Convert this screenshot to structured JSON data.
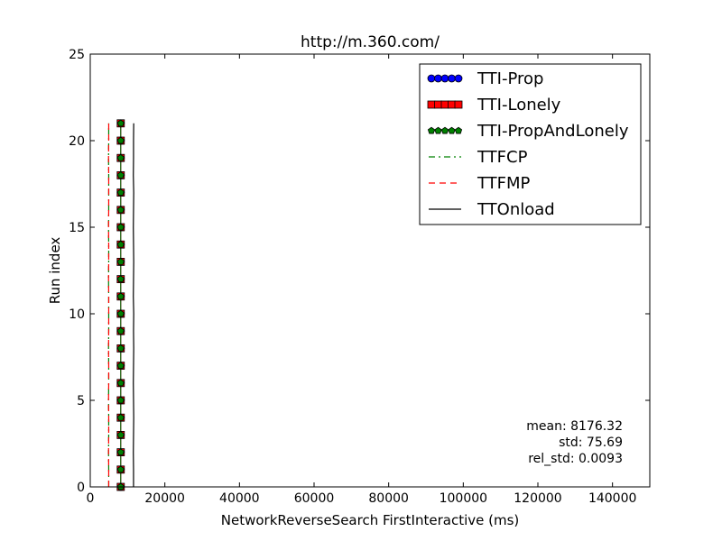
{
  "chart_data": {
    "type": "line",
    "title": "http://m.360.com/",
    "xlabel": "NetworkReverseSearch FirstInteractive (ms)",
    "ylabel": "Run index",
    "xlim": [
      0,
      150000
    ],
    "ylim": [
      0,
      25
    ],
    "xticks": [
      0,
      20000,
      40000,
      60000,
      80000,
      100000,
      120000,
      140000
    ],
    "xtick_labels": [
      "0",
      "20000",
      "40000",
      "60000",
      "80000",
      "100000",
      "120000",
      "140000"
    ],
    "yticks": [
      0,
      5,
      10,
      15,
      20,
      25
    ],
    "ytick_labels": [
      "0",
      "5",
      "10",
      "15",
      "20",
      "25"
    ],
    "grid": false,
    "legend_position": "top-right",
    "series": [
      {
        "name": "TTI-Prop",
        "color": "#0000ff",
        "style": "marker-circle",
        "x": [
          8176,
          8176,
          8176,
          8176,
          8176,
          8176,
          8176,
          8176,
          8176,
          8176,
          8176,
          8176,
          8176,
          8176,
          8176,
          8176,
          8176,
          8176,
          8176,
          8176,
          8176,
          8176
        ],
        "y": [
          0,
          1,
          2,
          3,
          4,
          5,
          6,
          7,
          8,
          9,
          10,
          11,
          12,
          13,
          14,
          15,
          16,
          17,
          18,
          19,
          20,
          21
        ]
      },
      {
        "name": "TTI-Lonely",
        "color": "#ff0000",
        "style": "marker-square",
        "x": [
          8176,
          8176,
          8176,
          8176,
          8176,
          8176,
          8176,
          8176,
          8176,
          8176,
          8176,
          8176,
          8176,
          8176,
          8176,
          8176,
          8176,
          8176,
          8176,
          8176,
          8176,
          8176
        ],
        "y": [
          0,
          1,
          2,
          3,
          4,
          5,
          6,
          7,
          8,
          9,
          10,
          11,
          12,
          13,
          14,
          15,
          16,
          17,
          18,
          19,
          20,
          21
        ]
      },
      {
        "name": "TTI-PropAndLonely",
        "color": "#008000",
        "style": "marker-pentagon",
        "x": [
          8176,
          8176,
          8176,
          8176,
          8176,
          8176,
          8176,
          8176,
          8176,
          8176,
          8176,
          8176,
          8176,
          8176,
          8176,
          8176,
          8176,
          8176,
          8176,
          8176,
          8176,
          8176
        ],
        "y": [
          0,
          1,
          2,
          3,
          4,
          5,
          6,
          7,
          8,
          9,
          10,
          11,
          12,
          13,
          14,
          15,
          16,
          17,
          18,
          19,
          20,
          21
        ]
      },
      {
        "name": "TTFCP",
        "color": "#008000",
        "style": "dash-dot",
        "x": [
          4950,
          4950,
          4900,
          4950,
          4950,
          4900,
          4950,
          4950,
          4900,
          4950,
          4950,
          4950,
          4900,
          4950,
          4950,
          4900,
          4950,
          4950,
          4950,
          4900,
          4950,
          4950
        ],
        "y": [
          0,
          1,
          2,
          3,
          4,
          5,
          6,
          7,
          8,
          9,
          10,
          11,
          12,
          13,
          14,
          15,
          16,
          17,
          18,
          19,
          20,
          21
        ]
      },
      {
        "name": "TTFMP",
        "color": "#ff0000",
        "style": "dashed",
        "x": [
          4950,
          4950,
          4900,
          4950,
          4950,
          4900,
          4950,
          4950,
          4900,
          4950,
          4950,
          4950,
          4900,
          4950,
          4950,
          4900,
          4950,
          4950,
          4950,
          4900,
          4950,
          4950
        ],
        "y": [
          0,
          1,
          2,
          3,
          4,
          5,
          6,
          7,
          8,
          9,
          10,
          11,
          12,
          13,
          14,
          15,
          16,
          17,
          18,
          19,
          20,
          21
        ]
      },
      {
        "name": "TTOnload",
        "color": "#000000",
        "style": "solid",
        "x": [
          11600,
          11600,
          11550,
          11600,
          11650,
          11600,
          11550,
          11600,
          11650,
          11600,
          11650,
          11550,
          11600,
          11650,
          11600,
          11550,
          11600,
          11650,
          11550,
          11600,
          11600,
          11650
        ],
        "y": [
          0,
          1,
          2,
          3,
          4,
          5,
          6,
          7,
          8,
          9,
          10,
          11,
          12,
          13,
          14,
          15,
          16,
          17,
          18,
          19,
          20,
          21
        ]
      }
    ],
    "annotations": [
      "mean: 8176.32",
      "std: 75.69",
      "rel_std: 0.0093"
    ]
  }
}
